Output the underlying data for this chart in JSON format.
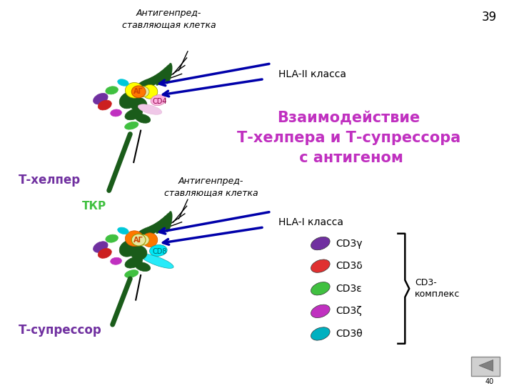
{
  "bg_color": "#ffffff",
  "page_number": "39",
  "top_apc_label": "Антигенпред-\nставляющая клетка",
  "bottom_apc_label": "Антигенпред-\nставляющая клетка",
  "hla2_label": "HLA-II класса",
  "hla1_label": "HLA-I класса",
  "t_helper_label": "Т-хелпер",
  "t_suppressor_label": "Т-супрессор",
  "tkr_label": "ТКР",
  "main_title": "Взаимодействие\nТ-хелпера и Т-супрессора\n с антигеном",
  "ag_label": "АГ",
  "cd4_label": "CD4",
  "cd8_label": "CD8",
  "legend_items": [
    "CD3γ",
    "CD3δ",
    "CD3ε",
    "CD3ζ",
    "CD3θ"
  ],
  "legend_colors": [
    "#7030a0",
    "#e03030",
    "#40c040",
    "#c030c0",
    "#00b0c0"
  ],
  "cd3_complex_label": "CD3-\nкомплекс",
  "colors": {
    "yellow": "#ffff00",
    "orange": "#ff7700",
    "green_dark": "#1a5c1a",
    "green_light": "#40c040",
    "pink_light": "#ffb0e0",
    "pink_pale": "#f0c8e8",
    "purple": "#7030a0",
    "red": "#e03030",
    "cyan": "#00c8d8",
    "cyan_bright": "#00e8f8",
    "magenta": "#c030c0",
    "dark_blue": "#0000aa",
    "cream": "#e8e8a0",
    "black": "#000000",
    "gray": "#999999"
  }
}
